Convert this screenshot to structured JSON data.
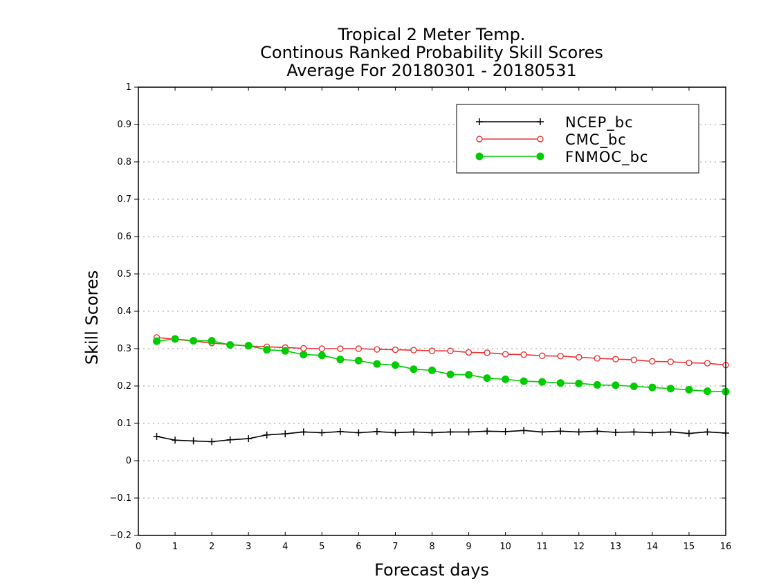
{
  "chart_data": {
    "type": "line",
    "title": [
      "Tropical 2 Meter Temp.",
      "Continous Ranked Probability Skill Scores",
      "Average For 20180301 - 20180531"
    ],
    "xlabel": "Forecast days",
    "ylabel": "Skill Scores",
    "xlim": [
      0,
      16
    ],
    "ylim": [
      -0.2,
      1
    ],
    "xticks": [
      0,
      1,
      2,
      3,
      4,
      5,
      6,
      7,
      8,
      9,
      10,
      11,
      12,
      13,
      14,
      15,
      16
    ],
    "xtick_labels": [
      "0",
      "1",
      "2",
      "3",
      "4",
      "5",
      "6",
      "7",
      "8",
      "9",
      "10",
      "11",
      "12",
      "13",
      "14",
      "15",
      "16"
    ],
    "yticks": [
      -0.2,
      -0.1,
      0,
      0.1,
      0.2,
      0.3,
      0.4,
      0.5,
      0.6,
      0.7,
      0.8,
      0.9,
      1
    ],
    "ytick_labels": [
      "−0.2",
      "−0.1",
      "0",
      "0.1",
      "0.2",
      "0.3",
      "0.4",
      "0.5",
      "0.6",
      "0.7",
      "0.8",
      "0.9",
      "1"
    ],
    "grid": "horizontal dotted",
    "legend_position": "top-right",
    "x": [
      0.5,
      1,
      1.5,
      2,
      2.5,
      3,
      3.5,
      4,
      4.5,
      5,
      5.5,
      6,
      6.5,
      7,
      7.5,
      8,
      8.5,
      9,
      9.5,
      10,
      10.5,
      11,
      11.5,
      12,
      12.5,
      13,
      13.5,
      14,
      14.5,
      15,
      15.5,
      16
    ],
    "series": [
      {
        "name": "NCEP_bc",
        "color": "#000000",
        "marker": "plus",
        "values": [
          0.065,
          0.055,
          0.053,
          0.051,
          0.056,
          0.059,
          0.069,
          0.072,
          0.077,
          0.075,
          0.078,
          0.075,
          0.078,
          0.075,
          0.077,
          0.075,
          0.077,
          0.077,
          0.079,
          0.078,
          0.081,
          0.077,
          0.079,
          0.077,
          0.079,
          0.076,
          0.077,
          0.075,
          0.077,
          0.073,
          0.077,
          0.074
        ]
      },
      {
        "name": "CMC_bc",
        "color": "#ee3333",
        "marker": "open-circle",
        "values": [
          0.33,
          0.325,
          0.32,
          0.315,
          0.311,
          0.307,
          0.305,
          0.303,
          0.301,
          0.3,
          0.3,
          0.3,
          0.298,
          0.297,
          0.296,
          0.294,
          0.294,
          0.29,
          0.289,
          0.285,
          0.284,
          0.281,
          0.28,
          0.277,
          0.274,
          0.272,
          0.27,
          0.266,
          0.265,
          0.262,
          0.261,
          0.256
        ]
      },
      {
        "name": "FNMOC_bc",
        "color": "#00cc00",
        "marker": "filled-circle",
        "values": [
          0.32,
          0.326,
          0.321,
          0.321,
          0.31,
          0.308,
          0.297,
          0.294,
          0.284,
          0.282,
          0.271,
          0.268,
          0.259,
          0.256,
          0.245,
          0.242,
          0.231,
          0.23,
          0.221,
          0.218,
          0.213,
          0.211,
          0.208,
          0.207,
          0.203,
          0.202,
          0.199,
          0.196,
          0.193,
          0.19,
          0.186,
          0.185
        ]
      }
    ]
  }
}
